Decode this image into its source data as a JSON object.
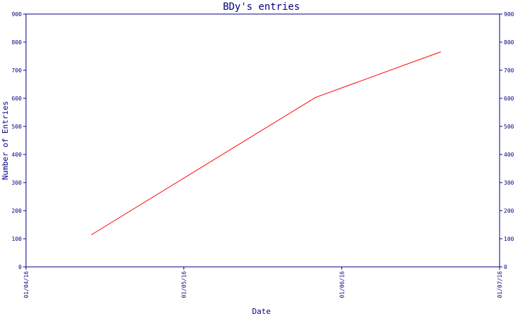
{
  "chart_data": {
    "type": "line",
    "title": "BDy's entries",
    "xlabel": "Date",
    "ylabel": "Number of Entries",
    "x_ticks": [
      "01/04/16",
      "01/05/16",
      "01/06/16",
      "01/07/16"
    ],
    "y_ticks": [
      "0",
      "100",
      "200",
      "300",
      "400",
      "500",
      "600",
      "700",
      "800",
      "900"
    ],
    "ylim": [
      0,
      900
    ],
    "xlim": [
      "2016-01-04",
      "2016-01-07"
    ],
    "grid": false,
    "secondary_y_axis": true,
    "series": [
      {
        "color": "#ff0000",
        "points": [
          {
            "x": "2016-01-04 10:00",
            "y": 115
          },
          {
            "x": "2016-01-05 20:00",
            "y": 603
          },
          {
            "x": "2016-01-06 15:00",
            "y": 765
          }
        ]
      }
    ]
  }
}
